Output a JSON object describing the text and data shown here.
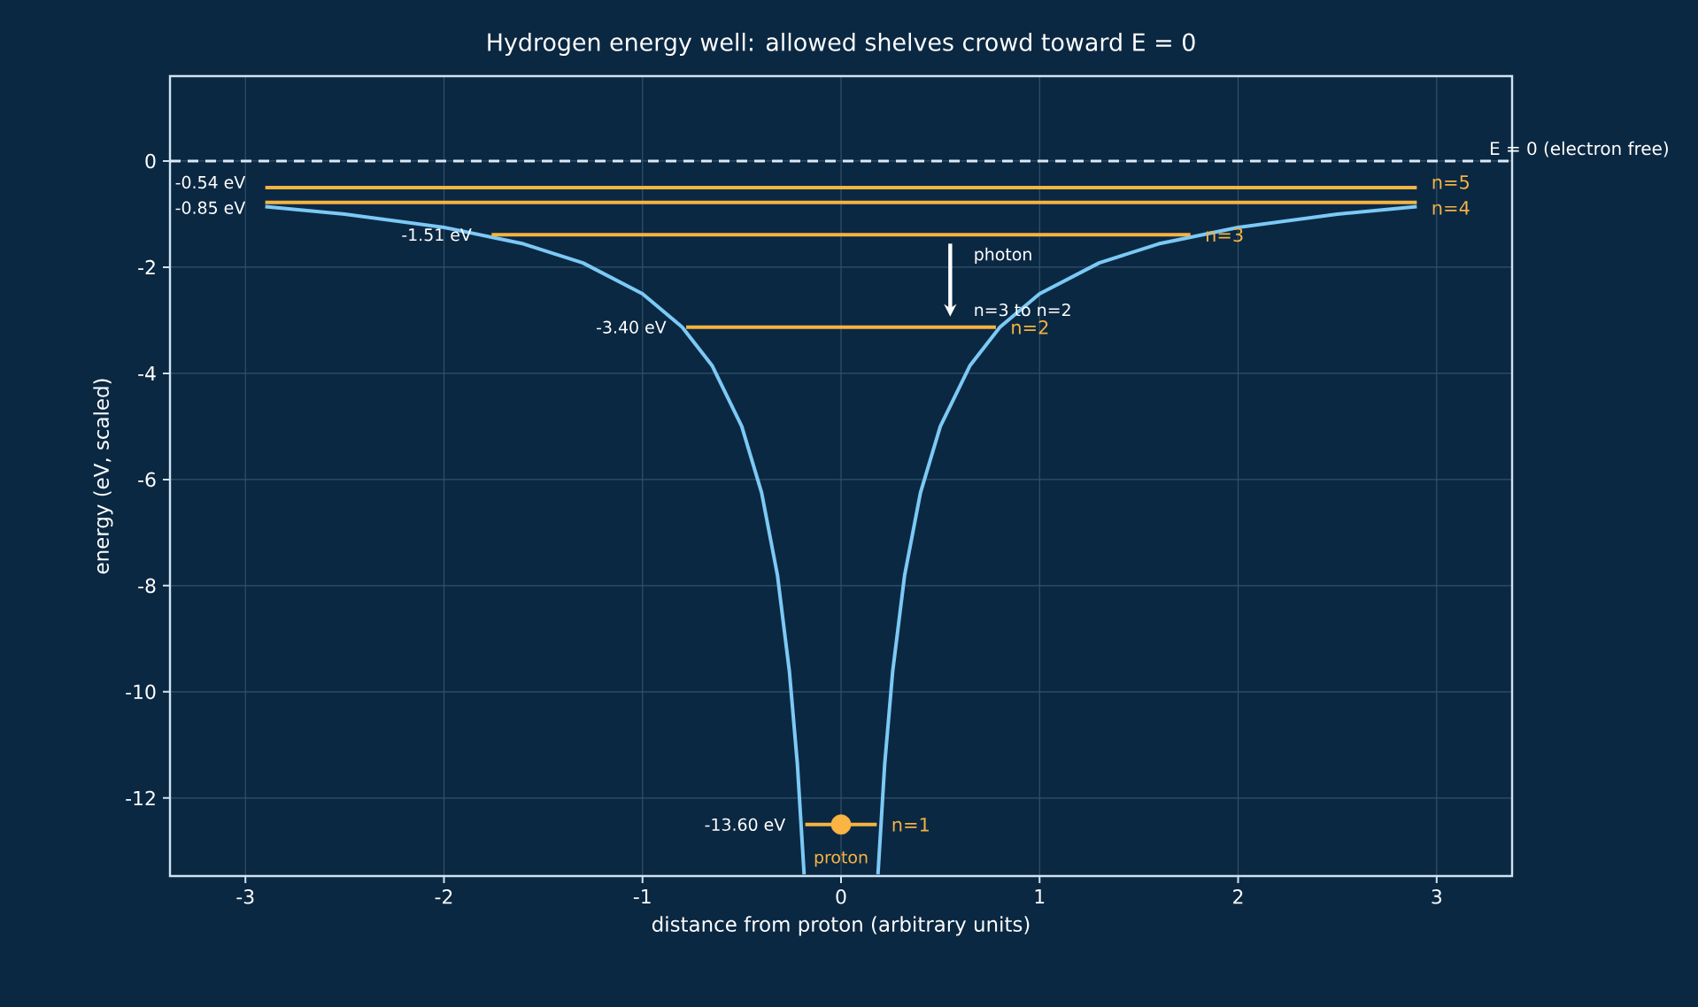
{
  "chart_data": {
    "type": "line",
    "title": "Hydrogen energy well: allowed shelves crowd toward E = 0",
    "xlabel": "distance from proton  (arbitrary units)",
    "ylabel": "energy  (eV, scaled)",
    "xlim": [
      -3.38,
      3.38
    ],
    "ylim": [
      -13.47,
      1.6
    ],
    "xticks": [
      -3,
      -2,
      -1,
      0,
      1,
      2,
      3
    ],
    "yticks": [
      -12,
      -10,
      -8,
      -6,
      -4,
      -2,
      0
    ],
    "grid": true,
    "series": [
      {
        "color": "#7cc9f5",
        "x": [
          -2.9,
          -2.5,
          -2.0,
          -1.6,
          -1.3,
          -1.0,
          -0.8,
          -0.65,
          -0.5,
          -0.4,
          -0.32,
          -0.26,
          -0.22,
          -0.186,
          0,
          0.186,
          0.22,
          0.26,
          0.32,
          0.4,
          0.5,
          0.65,
          0.8,
          1.0,
          1.3,
          1.6,
          2.0,
          2.5,
          2.9
        ],
        "values": [
          -0.86,
          -1.0,
          -1.25,
          -1.56,
          -1.92,
          -2.5,
          -3.13,
          -3.85,
          -5.0,
          -6.25,
          -7.81,
          -9.62,
          -11.36,
          -13.44,
          null,
          -13.44,
          -11.36,
          -9.62,
          -7.81,
          -6.25,
          -5.0,
          -3.85,
          -3.13,
          -2.5,
          -1.92,
          -1.56,
          -1.25,
          -1.0,
          -0.86
        ]
      },
      {
        "name": "n=1",
        "color": "#f5b342",
        "x": [
          -0.18,
          0.18
        ],
        "values": [
          -12.5,
          -12.5
        ]
      },
      {
        "name": "n=2",
        "color": "#f5b342",
        "x": [
          -0.78,
          0.78
        ],
        "values": [
          -3.13,
          -3.13
        ]
      },
      {
        "name": "n=3",
        "color": "#f5b342",
        "x": [
          -1.76,
          1.76
        ],
        "values": [
          -1.39,
          -1.39
        ]
      },
      {
        "name": "n=4",
        "color": "#f5b342",
        "x": [
          -2.9,
          2.9
        ],
        "values": [
          -0.78,
          -0.78
        ]
      },
      {
        "name": "n=5",
        "color": "#f5b342",
        "x": [
          -2.9,
          2.9
        ],
        "values": [
          -0.5,
          -0.5
        ]
      },
      {
        "type": "scatter",
        "name": "proton",
        "color": "#f9b444",
        "x": [
          0
        ],
        "values": [
          -12.5
        ]
      }
    ],
    "ref_lines": [
      {
        "axis": "y",
        "value": 0,
        "label": "E = 0  (electron free)",
        "color": "#dbe9f5",
        "line_style": "dashed"
      }
    ],
    "annotations": [
      {
        "text": "photon",
        "x": 0.55,
        "y": -1.39
      },
      {
        "text": "n=3 to n=2",
        "x": 0.55,
        "y": -3.13
      },
      "-13.60 eV",
      "-3.40 eV",
      "-1.51 eV",
      "-0.85 eV",
      "-0.54 eV"
    ]
  }
}
